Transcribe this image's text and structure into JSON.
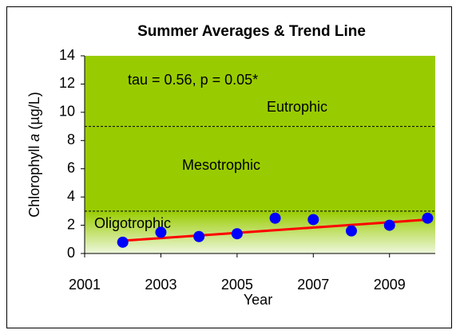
{
  "chart_data": {
    "type": "scatter",
    "title": "Summer Averages  & Trend Line",
    "annotation": "tau = 0.56, p = 0.05*",
    "x_label": "Year",
    "y_label": [
      "Chlorophyll ",
      "a",
      " (µg/L)"
    ],
    "xlim": [
      2001,
      2010.2
    ],
    "xticks": [
      2001,
      2003,
      2005,
      2007,
      2009
    ],
    "ylim": [
      0,
      14
    ],
    "yticks": [
      0,
      2,
      4,
      6,
      8,
      10,
      12,
      14
    ],
    "background_color": "#99cc00",
    "zones": [
      {
        "label": "Oligotrophic",
        "lower": 0,
        "upper": 3
      },
      {
        "label": "Mesotrophic",
        "lower": 3,
        "upper": 9
      },
      {
        "label": "Eutrophic",
        "lower": 9,
        "upper": 14
      }
    ],
    "points": {
      "color": "#0000ff",
      "x": [
        2002,
        2003,
        2004,
        2005,
        2006,
        2007,
        2008,
        2009,
        2010
      ],
      "values": [
        0.8,
        1.5,
        1.2,
        1.4,
        2.5,
        2.4,
        1.6,
        2.0,
        2.5
      ]
    },
    "trend": {
      "color": "#ff0000",
      "x": [
        2002,
        2010
      ],
      "values": [
        0.9,
        2.4
      ]
    }
  }
}
